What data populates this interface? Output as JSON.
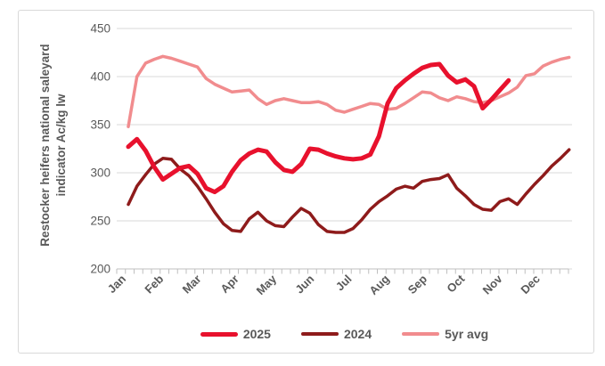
{
  "chart_data": {
    "type": "line",
    "title": "",
    "ylabel": "Restocker heifers national saleyard indicator Ac/kg lw",
    "xlabel": "",
    "x_unit": "weekly observations, Jan-Dec",
    "categories": [
      "Jan",
      "Feb",
      "Mar",
      "Apr",
      "May",
      "Jun",
      "Jul",
      "Aug",
      "Sep",
      "Oct",
      "Nov",
      "Dec"
    ],
    "yticks": [
      200,
      250,
      300,
      350,
      400,
      450
    ],
    "ylim": [
      200,
      450
    ],
    "grid": true,
    "legend_position": "bottom",
    "colors": {
      "grid": "#d9d9d9",
      "axis": "#bfbfbf",
      "label_text": "#595959"
    },
    "series": [
      {
        "name": "2025",
        "color": "#e8112d",
        "stroke_width": 5,
        "values": [
          327,
          335,
          323,
          306,
          293,
          299,
          305,
          307,
          299,
          284,
          280,
          286,
          301,
          313,
          320,
          324,
          322,
          311,
          303,
          301,
          309,
          325,
          324,
          320,
          317,
          315,
          314,
          315,
          319,
          338,
          372,
          388,
          396,
          403,
          409,
          412,
          413,
          401,
          394,
          397,
          390,
          367,
          376,
          386,
          396
        ]
      },
      {
        "name": "2024",
        "color": "#8e1b1b",
        "stroke_width": 3.5,
        "values": [
          267,
          286,
          298,
          309,
          315,
          314,
          304,
          297,
          286,
          273,
          259,
          247,
          240,
          239,
          252,
          259,
          250,
          245,
          244,
          254,
          263,
          258,
          246,
          239,
          238,
          238,
          242,
          251,
          262,
          270,
          276,
          283,
          286,
          284,
          291,
          293,
          294,
          298,
          284,
          276,
          267,
          262,
          261,
          270,
          273,
          267,
          278,
          288,
          297,
          307,
          315,
          324
        ]
      },
      {
        "name": "5yr avg",
        "color": "#f18c8e",
        "stroke_width": 3.5,
        "values": [
          348,
          400,
          414,
          418,
          421,
          419,
          416,
          413,
          410,
          398,
          392,
          388,
          384,
          385,
          386,
          377,
          371,
          375,
          377,
          375,
          373,
          373,
          374,
          371,
          365,
          363,
          366,
          369,
          372,
          371,
          366,
          367,
          372,
          378,
          384,
          383,
          378,
          375,
          379,
          377,
          374,
          373,
          375,
          379,
          383,
          389,
          401,
          403,
          411,
          415,
          418,
          420
        ]
      }
    ]
  }
}
